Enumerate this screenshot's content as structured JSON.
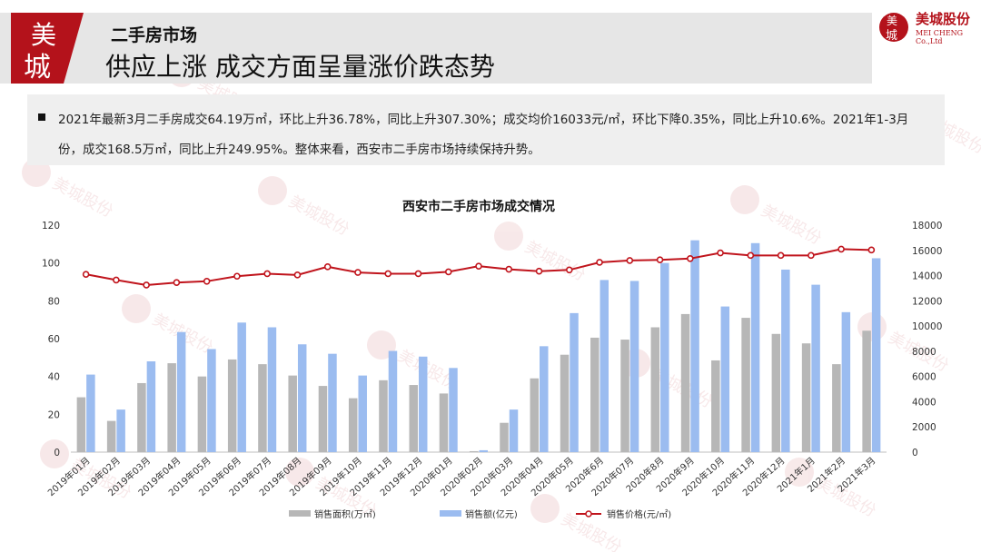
{
  "header": {
    "section_label": "二手房市场",
    "title": "供应上涨  成交方面呈量涨价跌态势",
    "logo_text_top": "美",
    "logo_text_bottom": "城"
  },
  "brand": {
    "name": "美城股份",
    "sub": "MEI CHENG Co.,Ltd",
    "logo_top": "美",
    "logo_bottom": "城",
    "color": "#b4121b"
  },
  "summary": {
    "text": "2021年最新3月二手房成交64.19万㎡，环比上升36.78%，同比上升307.30%；成交均价16033元/㎡，环比下降0.35%，同比上升10.6%。2021年1-3月份，成交168.5万㎡，同比上升249.95%。整体来看，西安市二手房市场持续保持升势。"
  },
  "chart_data": {
    "type": "bar",
    "title": "西安市二手房市场成交情况",
    "categories": [
      "2019年01月",
      "2019年02月",
      "2019年03月",
      "2019年04月",
      "2019年05月",
      "2019年06月",
      "2019年07月",
      "2019年08月",
      "2019年09月",
      "2019年10月",
      "2019年11月",
      "2019年12月",
      "2020年01月",
      "2020年02月",
      "2020年03月",
      "2020年04月",
      "2020年05月",
      "2020年6月",
      "2020年07月",
      "2020年8月",
      "2020年9月",
      "2020年10月",
      "2020年11月",
      "2020年12月",
      "2021年1月",
      "2021年2月",
      "2021年3月"
    ],
    "left_axis": {
      "ylim": [
        0,
        120
      ],
      "ticks": [
        "0",
        "20",
        "40",
        "60",
        "80",
        "100",
        "120"
      ]
    },
    "right_axis": {
      "ylim": [
        0,
        18000
      ],
      "ticks": [
        "0",
        "2000",
        "4000",
        "6000",
        "8000",
        "10000",
        "12000",
        "14000",
        "16000",
        "18000"
      ]
    },
    "series": [
      {
        "name": "销售面积(万㎡)",
        "type": "bar",
        "axis": "left",
        "color": "#b7b7b7",
        "values": [
          29,
          16.5,
          36.5,
          47,
          40,
          49,
          46.5,
          40.5,
          35,
          28.5,
          38,
          35.5,
          31,
          0.5,
          15.5,
          39,
          51.5,
          60.5,
          59.5,
          66,
          73,
          48.5,
          71,
          62.5,
          57.5,
          46.5,
          64.2
        ]
      },
      {
        "name": "销售额(亿元)",
        "type": "bar",
        "axis": "left",
        "color": "#9bbcf0",
        "values": [
          41,
          22.5,
          48,
          63.5,
          54.5,
          68.5,
          66,
          57,
          52,
          40.5,
          53.5,
          50.5,
          44.5,
          1,
          22.5,
          56,
          73.5,
          91,
          90.5,
          100,
          112,
          77,
          110.5,
          96.5,
          88.5,
          74,
          102.5
        ]
      },
      {
        "name": "销售价格(元/㎡)",
        "type": "line",
        "axis": "right",
        "color": "#c0141c",
        "values": [
          14100,
          13650,
          13250,
          13450,
          13550,
          13950,
          14150,
          14050,
          14700,
          14250,
          14150,
          14150,
          14300,
          14750,
          14500,
          14350,
          14450,
          15050,
          15200,
          15250,
          15350,
          15800,
          15600,
          15600,
          15600,
          16100,
          16033
        ]
      }
    ],
    "legend_position": "bottom",
    "grid": false
  }
}
